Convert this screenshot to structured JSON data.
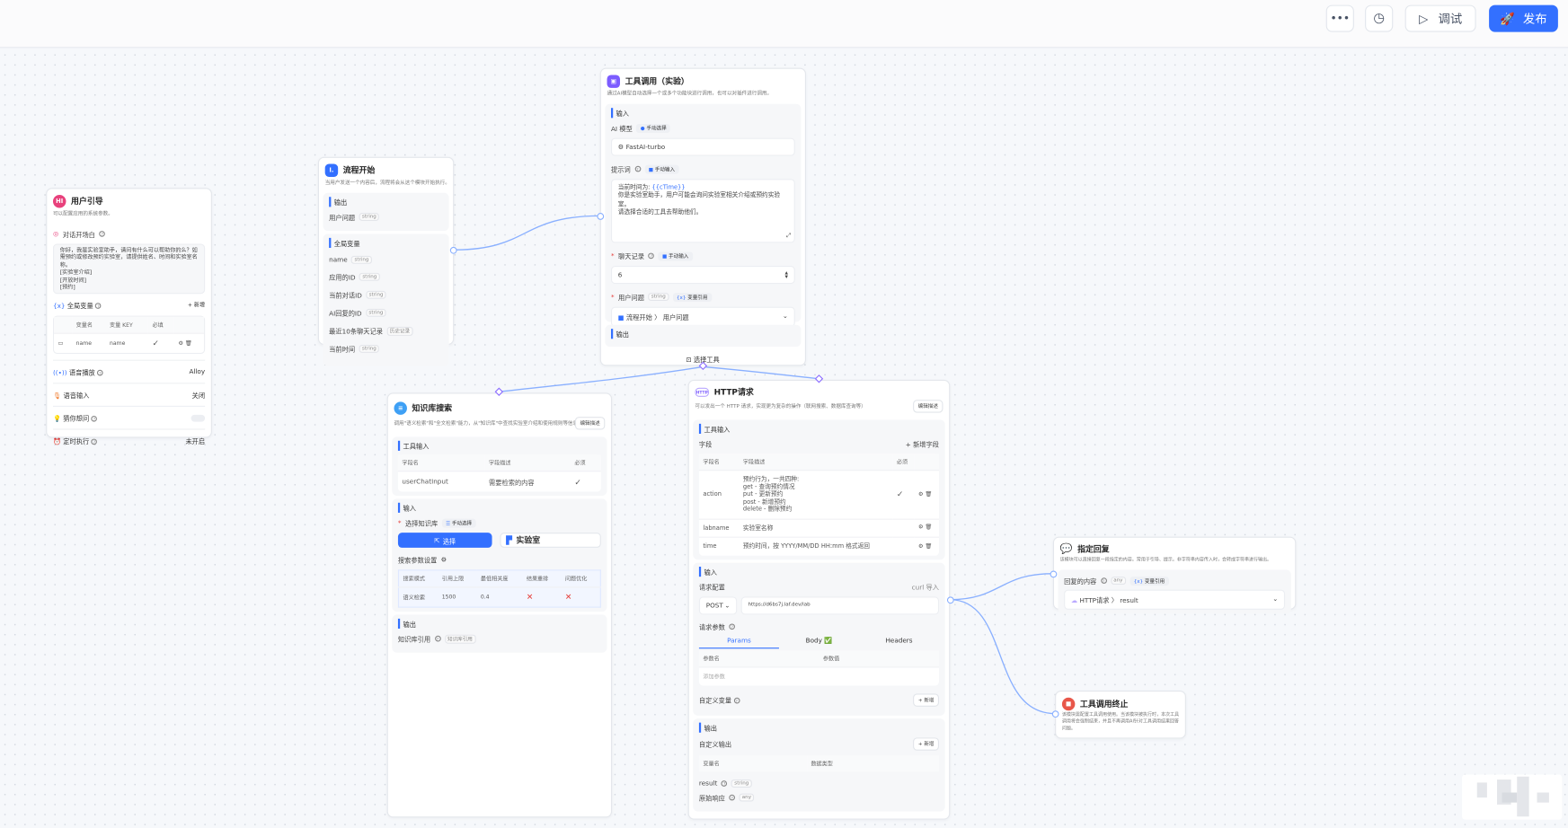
{
  "topbar": {
    "more_icon": "more-icon",
    "history_icon": "clock-icon",
    "debug_label": "调试",
    "publish_label": "发布",
    "accent": "#3370ff"
  },
  "user_guide": {
    "title": "用户引导",
    "icon_text": "HI",
    "desc": "可以配置应用的系统参数。",
    "opening": {
      "label": "对话开场白",
      "text": "你好，我是实验室助手，请问有什么可以帮助你的么？如需预约或修改预约实验室，请提供姓名、时间和实验室名称。\n[实验室介绍]\n[开放时间]\n[预约]"
    },
    "globals": {
      "label": "全局变量",
      "add": "+ 新增",
      "headers": [
        "变量名",
        "变量 KEY",
        "必填"
      ],
      "rows": [
        {
          "name": "name",
          "key": "name",
          "required": "✓"
        }
      ]
    },
    "tts": {
      "label": "语音播放",
      "value": "Alloy"
    },
    "stt": {
      "label": "语音输入",
      "value": "关闭"
    },
    "guess": {
      "label": "猜你想问",
      "enabled": false
    },
    "timer": {
      "label": "定时执行",
      "value": "未开启"
    }
  },
  "flow_start": {
    "title": "流程开始",
    "desc": "当用户发送一个内容后，流程将会从这个模块开始执行。",
    "output_label": "输出",
    "output": [
      {
        "name": "用户问题",
        "type": "string"
      }
    ],
    "globals_label": "全局变量",
    "globals": [
      {
        "name": "name",
        "type": "string"
      },
      {
        "name": "应用的ID",
        "type": "string"
      },
      {
        "name": "当前对话ID",
        "type": "string"
      },
      {
        "name": "AI回复的ID",
        "type": "string"
      },
      {
        "name": "最近10条聊天记录",
        "type": "历史记录"
      },
      {
        "name": "当前时间",
        "type": "string"
      }
    ]
  },
  "tool_call": {
    "title": "工具调用（实验）",
    "desc": "通过AI模型自动选择一个或多个功能块进行调用，也可以对插件进行调用。",
    "input_label": "输入",
    "model_label": "AI 模型",
    "model_mode": "手动选择",
    "model": "FastAI-turbo",
    "prompt_label": "提示词",
    "prompt_mode": "手动输入",
    "prompt_var": "{{cTime}}",
    "prompt_prefix": "当前时间为: ",
    "prompt_rest": "你是实验室助手，用户可能会询问实验室相关介绍或预约实验室。\n请选择合适的工具去帮助他们。",
    "history_label": "聊天记录",
    "history_mode": "手动输入",
    "history_value": "6",
    "question_label": "用户问题",
    "question_type": "string",
    "question_mode": "变量引用",
    "question_ref_node": "流程开始",
    "question_ref_field": "用户问题",
    "output_label": "输出",
    "select_tool": "选择工具"
  },
  "knowledge": {
    "title": "知识库搜索",
    "desc": "调用\"语义检索\"和\"全文检索\"能力，从\"知识库\"中查找实验室介绍和使用规则等信息。",
    "edit_desc": "编辑描述",
    "tool_input_label": "工具输入",
    "headers": [
      "字段名",
      "字段描述",
      "必须"
    ],
    "rows": [
      {
        "name": "userChatInput",
        "desc": "需要检索的内容",
        "required": "✓"
      }
    ],
    "input_label": "输入",
    "select_kb_label": "选择知识库",
    "select_kb_mode": "手动选择",
    "select_button": "选择",
    "kb_name": "实验室",
    "search_settings_label": "搜索参数设置",
    "search_headers": [
      "搜索模式",
      "引用上限",
      "最低相关度",
      "结果重排",
      "问题优化"
    ],
    "search_values": [
      "语义检索",
      "1500",
      "0.4",
      "✕",
      "✕"
    ],
    "output_label": "输出",
    "kb_ref_label": "知识库引用",
    "kb_ref_type": "知识库引用"
  },
  "http": {
    "title": "HTTP请求",
    "desc": "可以发出一个 HTTP 请求，实现更为复杂的操作（联网搜索、数据库查询等）",
    "edit_desc": "编辑描述",
    "tool_input_label": "工具输入",
    "fields_label": "字段",
    "add_field": "+ 新增字段",
    "headers": [
      "字段名",
      "字段描述",
      "必须"
    ],
    "rows": [
      {
        "name": "action",
        "desc": "预约行为，一共四种:\nget - 查询预约情况\nput - 更新预约\npost - 新增预约\ndelete - 删除预约",
        "required": "✓"
      },
      {
        "name": "labname",
        "desc": "实验室名称",
        "required": ""
      },
      {
        "name": "time",
        "desc": "预约时间，按 YYYY/MM/DD HH:mm 格式返回",
        "required": ""
      }
    ],
    "input_label": "输入",
    "req_config_label": "请求配置",
    "curl_import": "curl 导入",
    "method": "POST",
    "url": "https://d6bs7j.laf.dev/lab",
    "params_label": "请求参数",
    "tabs": [
      "Params",
      "Body ✅",
      "Headers"
    ],
    "active_tab": "Params",
    "param_headers": [
      "参数名",
      "参数值"
    ],
    "add_param": "添加参数",
    "custom_var_label": "自定义变量",
    "custom_var_add": "+ 新增",
    "output_label": "输出",
    "custom_output_label": "自定义输出",
    "custom_output_add": "+ 新增",
    "output_headers": [
      "变量名",
      "数据类型"
    ],
    "outputs": [
      {
        "name": "result",
        "type": "string"
      },
      {
        "name": "原始响应",
        "type": "any"
      }
    ]
  },
  "reply": {
    "title": "指定回复",
    "desc": "该模块可以直接回复一段指定的内容。常用于引导、提示。非字符串内容传入时，会转成字符串进行输出。",
    "content_label": "回复的内容",
    "content_type": "any",
    "content_mode": "变量引用",
    "ref_node": "HTTP请求",
    "ref_field": "result"
  },
  "stop": {
    "title": "工具调用终止",
    "desc": "该模块需配置工具调用使用。当该模块被执行时，本次工具调用将会强制结束，并且不再调用AI针对工具调用结果回答问题。"
  }
}
